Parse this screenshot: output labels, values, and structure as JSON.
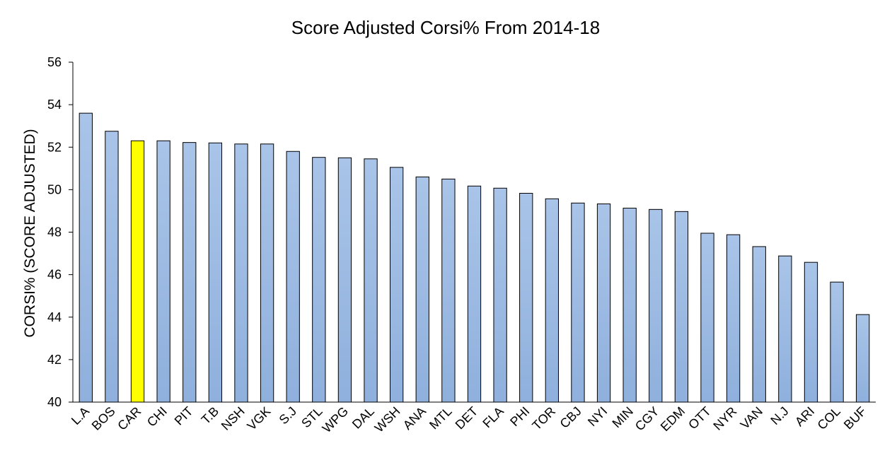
{
  "chart_data": {
    "type": "bar",
    "title": "Score Adjusted Corsi% From 2014-18",
    "xlabel": "",
    "ylabel": "CORSI% (SCORE ADJUSTED)",
    "ylim": [
      40,
      56
    ],
    "yticks": [
      40,
      42,
      44,
      46,
      48,
      50,
      52,
      54,
      56
    ],
    "grid": false,
    "legend": "none",
    "categories": [
      "L.A",
      "BOS",
      "CAR",
      "CHI",
      "PIT",
      "T.B",
      "NSH",
      "VGK",
      "S.J",
      "STL",
      "WPG",
      "DAL",
      "WSH",
      "ANA",
      "MTL",
      "DET",
      "FLA",
      "PHI",
      "TOR",
      "CBJ",
      "NYI",
      "MIN",
      "CGY",
      "EDM",
      "OTT",
      "NYR",
      "VAN",
      "N.J",
      "ARI",
      "COL",
      "BUF"
    ],
    "values": [
      53.6,
      52.75,
      52.3,
      52.3,
      52.22,
      52.2,
      52.15,
      52.15,
      51.8,
      51.52,
      51.5,
      51.45,
      51.05,
      50.6,
      50.5,
      50.17,
      50.07,
      49.83,
      49.57,
      49.37,
      49.33,
      49.13,
      49.07,
      48.97,
      47.95,
      47.88,
      47.32,
      46.88,
      46.58,
      45.65,
      44.12
    ],
    "highlight": "CAR",
    "colors": {
      "bar_fill": "#a9c4e8",
      "bar_fill_bottom": "#8fb0dd",
      "bar_stroke": "#000000",
      "highlight_fill": "#ffff00"
    }
  }
}
